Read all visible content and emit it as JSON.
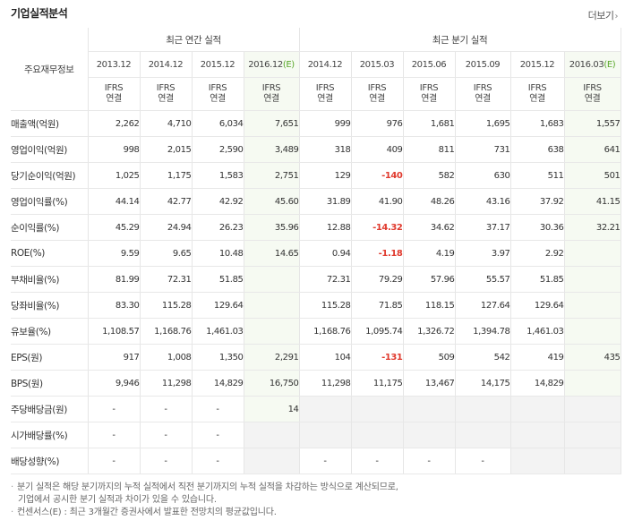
{
  "header": {
    "title": "기업실적분석",
    "more": "더보기"
  },
  "groups": {
    "label_head": "주요재무정보",
    "annual": "최근 연간 실적",
    "quarter": "최근 분기 실적"
  },
  "periods": [
    "2013.12",
    "2014.12",
    "2015.12",
    "2016.12(E)",
    "2014.12",
    "2015.03",
    "2015.06",
    "2015.09",
    "2015.12",
    "2016.03(E)"
  ],
  "ifrs": [
    "IFRS",
    "IFRS",
    "IFRS",
    "IFRS",
    "IFRS",
    "IFRS",
    "IFRS",
    "IFRS",
    "IFRS",
    "IFRS"
  ],
  "consol": [
    "연결",
    "연결",
    "연결",
    "연결",
    "연결",
    "연결",
    "연결",
    "연결",
    "연결",
    "연결"
  ],
  "rows": [
    {
      "label": "매출액(억원)",
      "values": [
        "2,262",
        "4,710",
        "6,034",
        "7,651",
        "999",
        "976",
        "1,681",
        "1,695",
        "1,683",
        "1,557"
      ]
    },
    {
      "label": "영업이익(억원)",
      "values": [
        "998",
        "2,015",
        "2,590",
        "3,489",
        "318",
        "409",
        "811",
        "731",
        "638",
        "641"
      ]
    },
    {
      "label": "당기순이익(억원)",
      "values": [
        "1,025",
        "1,175",
        "1,583",
        "2,751",
        "129",
        "-140",
        "582",
        "630",
        "511",
        "501"
      ]
    },
    {
      "label": "영업이익률(%)",
      "values": [
        "44.14",
        "42.77",
        "42.92",
        "45.60",
        "31.89",
        "41.90",
        "48.26",
        "43.16",
        "37.92",
        "41.15"
      ]
    },
    {
      "label": "순이익률(%)",
      "values": [
        "45.29",
        "24.94",
        "26.23",
        "35.96",
        "12.88",
        "-14.32",
        "34.62",
        "37.17",
        "30.36",
        "32.21"
      ]
    },
    {
      "label": "ROE(%)",
      "values": [
        "9.59",
        "9.65",
        "10.48",
        "14.65",
        "0.94",
        "-1.18",
        "4.19",
        "3.97",
        "2.92",
        ""
      ]
    },
    {
      "label": "부채비율(%)",
      "values": [
        "81.99",
        "72.31",
        "51.85",
        "",
        "72.31",
        "79.29",
        "57.96",
        "55.57",
        "51.85",
        ""
      ]
    },
    {
      "label": "당좌비율(%)",
      "values": [
        "83.30",
        "115.28",
        "129.64",
        "",
        "115.28",
        "71.85",
        "118.15",
        "127.64",
        "129.64",
        ""
      ]
    },
    {
      "label": "유보율(%)",
      "values": [
        "1,108.57",
        "1,168.76",
        "1,461.03",
        "",
        "1,168.76",
        "1,095.74",
        "1,326.72",
        "1,394.78",
        "1,461.03",
        ""
      ]
    },
    {
      "label": "EPS(원)",
      "values": [
        "917",
        "1,008",
        "1,350",
        "2,291",
        "104",
        "-131",
        "509",
        "542",
        "419",
        "435"
      ]
    },
    {
      "label": "BPS(원)",
      "values": [
        "9,946",
        "11,298",
        "14,829",
        "16,750",
        "11,298",
        "11,175",
        "13,467",
        "14,175",
        "14,829",
        ""
      ]
    },
    {
      "label": "주당배당금(원)",
      "values": [
        "-",
        "-",
        "-",
        "14",
        "",
        "",
        "",
        "",
        "",
        ""
      ]
    },
    {
      "label": "시가배당률(%)",
      "values": [
        "-",
        "-",
        "-",
        "",
        "",
        "",
        "",
        "",
        "",
        ""
      ]
    },
    {
      "label": "배당성향(%)",
      "values": [
        "-",
        "-",
        "-",
        "",
        "-",
        "-",
        "-",
        "-",
        "",
        ""
      ]
    }
  ],
  "notes": [
    "분기 실적은 해당 분기까지의 누적 실적에서 직전 분기까지의 누적 실적을 차감하는 방식으로 계산되므로,",
    "기업에서 공시한 분기 실적과 차이가 있을 수 있습니다.",
    "컨센서스(E) : 최근 3개월간 증권사에서 발표한 전망치의 평균값입니다."
  ],
  "colors": {
    "negative": "#e03a2e",
    "ifrs": "#e8731f",
    "estimate_bg": "#f6faf2"
  }
}
